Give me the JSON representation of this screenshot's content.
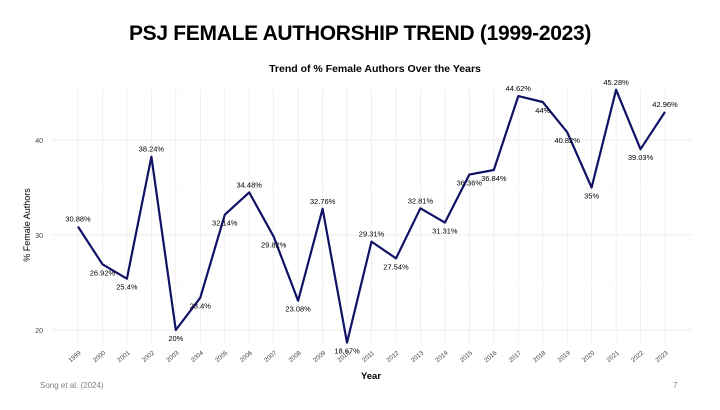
{
  "slide": {
    "title": "PSJ FEMALE AUTHORSHIP TREND (1999-2023)",
    "citation": "Song et al. (2024)",
    "page_number": "7"
  },
  "colors": {
    "line": "#111166",
    "grid_major": "#e6e6e6",
    "grid_minor": "#f3f3f3",
    "text": "#000000",
    "tick": "#444444"
  },
  "chart_data": {
    "type": "line",
    "title": "Trend of % Female Authors Over the Years",
    "xlabel": "Year",
    "ylabel": "% Female Authors",
    "ylim": [
      18.67,
      45.28
    ],
    "yticks": [
      20,
      30,
      40
    ],
    "ytick_labels": [
      "20",
      "30",
      "40"
    ],
    "x": [
      "1999",
      "2000",
      "2001",
      "2002",
      "2003",
      "2004",
      "2005",
      "2006",
      "2007",
      "2008",
      "2009",
      "2010",
      "2011",
      "2012",
      "2013",
      "2014",
      "2015",
      "2016",
      "2017",
      "2018",
      "2019",
      "2020",
      "2021",
      "2022",
      "2023"
    ],
    "values": [
      30.88,
      26.92,
      25.4,
      38.24,
      20,
      23.4,
      32.14,
      34.48,
      29.82,
      23.08,
      32.76,
      18.67,
      29.31,
      27.54,
      32.81,
      31.31,
      36.36,
      36.84,
      44.62,
      44,
      40.82,
      35,
      45.28,
      39.03,
      42.96
    ],
    "labels": [
      "30.88%",
      "26.92%",
      "25.4%",
      "38.24%",
      "20%",
      "23.4%",
      "32.14%",
      "34.48%",
      "29.82%",
      "23.08%",
      "32.76%",
      "18.67%",
      "29.31%",
      "27.54%",
      "32.81%",
      "31.31%",
      "36.36%",
      "36.84%",
      "44.62%",
      "44%",
      "40.82%",
      "35%",
      "45.28%",
      "39.03%",
      "42.96%"
    ],
    "grid": true,
    "legend": "none"
  }
}
